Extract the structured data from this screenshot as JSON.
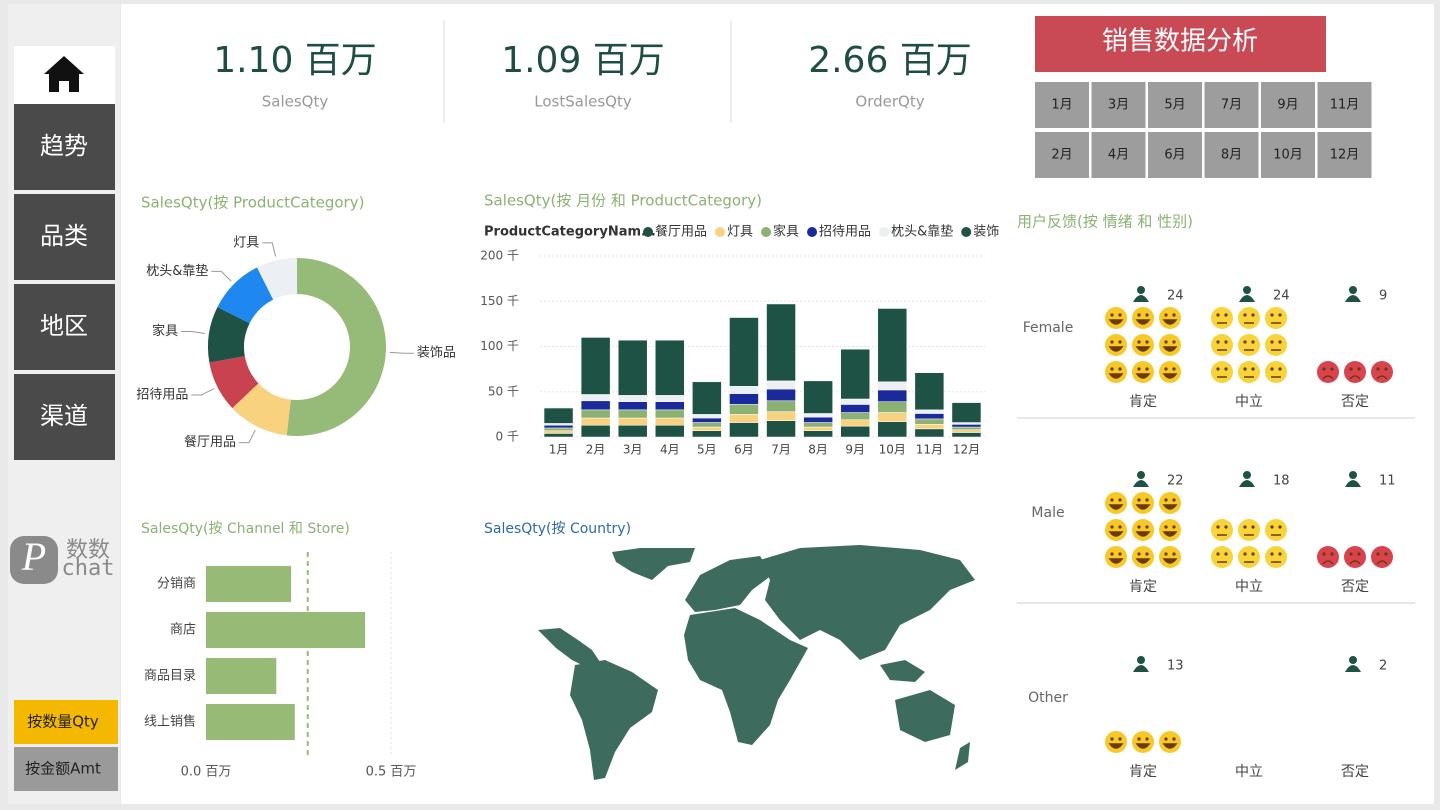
{
  "sidebar": {
    "nav": [
      "趋势",
      "品类",
      "地区",
      "渠道"
    ],
    "logo": {
      "mark": "P",
      "text": "数数",
      "sub": "chat"
    },
    "buttons": [
      "按数量Qty",
      "按金额Amt"
    ]
  },
  "kpis": [
    {
      "value": "1.10 百万",
      "label": "SalesQty"
    },
    {
      "value": "1.09 百万",
      "label": "LostSalesQty"
    },
    {
      "value": "2.66 百万",
      "label": "OrderQty"
    }
  ],
  "header": {
    "title": "销售数据分析",
    "months": [
      "1月",
      "2月",
      "3月",
      "4月",
      "5月",
      "6月",
      "7月",
      "8月",
      "9月",
      "10月",
      "11月",
      "12月"
    ]
  },
  "chart_data": [
    {
      "type": "donut",
      "title": "SalesQty(按 ProductCategory)",
      "categories": [
        "装饰品",
        "餐厅用品",
        "招待用品",
        "家具",
        "枕头&靠垫",
        "灯具"
      ],
      "values": [
        560000,
        120000,
        100000,
        110000,
        110000,
        80000
      ],
      "colors": [
        "#96bb78",
        "#f9d27f",
        "#c8434f",
        "#1e5245",
        "#1e88f0",
        "#eceff3"
      ]
    },
    {
      "type": "stacked_bar",
      "title": "SalesQty(按 月份 和 ProductCategory)",
      "legend_title": "ProductCategoryNam...",
      "categories": [
        "1月",
        "2月",
        "3月",
        "4月",
        "5月",
        "6月",
        "7月",
        "8月",
        "9月",
        "10月",
        "11月",
        "12月"
      ],
      "series": [
        {
          "name": "餐厅用品",
          "color": "#1e5245",
          "values": [
            4000,
            13000,
            13000,
            13000,
            7000,
            16000,
            18000,
            7000,
            12000,
            17000,
            9000,
            5000
          ]
        },
        {
          "name": "灯具",
          "color": "#f9d27f",
          "values": [
            3000,
            8000,
            8000,
            8000,
            4000,
            9000,
            10000,
            4000,
            7000,
            10000,
            5000,
            3000
          ]
        },
        {
          "name": "家具",
          "color": "#8bb272",
          "values": [
            3000,
            9000,
            9000,
            9000,
            5000,
            11000,
            12000,
            5000,
            8000,
            12000,
            6000,
            3000
          ]
        },
        {
          "name": "招待用品",
          "color": "#1a2a9a",
          "values": [
            3000,
            10000,
            9000,
            9000,
            5000,
            12000,
            13000,
            6000,
            9000,
            13000,
            6000,
            3000
          ]
        },
        {
          "name": "枕头&靠垫",
          "color": "#eceff3",
          "values": [
            2000,
            7000,
            7000,
            7000,
            4000,
            8000,
            9000,
            4000,
            6000,
            9000,
            4000,
            2000
          ]
        },
        {
          "name": "装饰",
          "color": "#1e5245",
          "values": [
            17000,
            63000,
            61000,
            61000,
            36000,
            76000,
            85000,
            36000,
            55000,
            81000,
            41000,
            22000
          ]
        }
      ],
      "ylim": [
        0,
        200000
      ],
      "yticks": [
        {
          "value": 0,
          "label": "0 千"
        },
        {
          "value": 50000,
          "label": "50 千"
        },
        {
          "value": 100000,
          "label": "100 千"
        },
        {
          "value": 150000,
          "label": "150 千"
        },
        {
          "value": 200000,
          "label": "200 千"
        }
      ],
      "grid": true
    },
    {
      "type": "hbar",
      "title": "SalesQty(按 Channel 和 Store)",
      "categories": [
        "分销商",
        "商店",
        "商品目录",
        "线上销售"
      ],
      "values": [
        230000,
        430000,
        190000,
        240000
      ],
      "color": "#97bb77",
      "average_line": 275000,
      "xlim": [
        0,
        500000
      ],
      "xticks": [
        {
          "value": 0,
          "label": "0.0 百万"
        },
        {
          "value": 500000,
          "label": "0.5 百万"
        }
      ]
    }
  ],
  "map": {
    "title": "SalesQty(按 Country)"
  },
  "feedback": {
    "title": "用户反馈(按 情绪 和 性别)",
    "genders": [
      "Female",
      "Male",
      "Other"
    ],
    "sentiments": [
      "肯定",
      "中立",
      "否定"
    ],
    "counts": [
      [
        24,
        24,
        9
      ],
      [
        22,
        18,
        11
      ],
      [
        13,
        null,
        2
      ]
    ],
    "icons": [
      [
        9,
        9,
        3
      ],
      [
        9,
        6,
        3
      ],
      [
        3,
        0,
        0
      ]
    ]
  }
}
